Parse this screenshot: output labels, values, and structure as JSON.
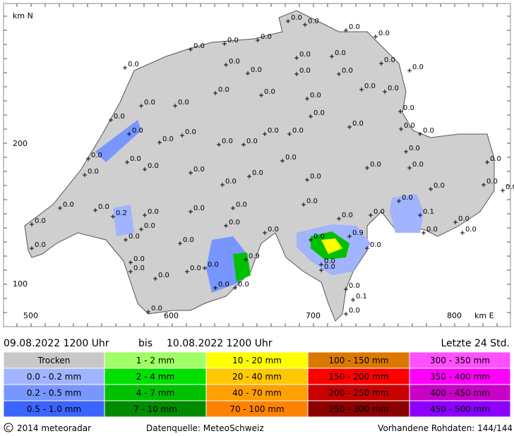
{
  "map": {
    "y_axis_label": "km N",
    "x_axis_label": "km E",
    "y_labels": [
      "200",
      "100"
    ],
    "x_labels": [
      "500",
      "600",
      "700",
      "800"
    ],
    "stations": [
      "0.0",
      "0.0",
      "0.0",
      "0.0",
      "0.0",
      "0.0",
      "0.0",
      "0.0",
      "0.0",
      "0.0",
      "0.0",
      "0.0",
      "0.0",
      "0.0",
      "0.0",
      "0.0",
      "0.0",
      "0.0",
      "0.0",
      "0.0",
      "0.0",
      "0.0",
      "0.0",
      "0.0",
      "0.0",
      "0.0",
      "0.0",
      "0.0",
      "0.0",
      "0.0",
      "0.0",
      "0.0",
      "0.0",
      "0.0",
      "0.0",
      "0.0",
      "0.0",
      "0.0",
      "0.0",
      "0.0",
      "0.0",
      "0.0",
      "0.0",
      "0.0",
      "0.0",
      "0.0",
      "0.0",
      "0.0",
      "0.0",
      "0.0",
      "0.0",
      "0.2",
      "0.0",
      "0.0",
      "0.0",
      "0.0",
      "0.0",
      "0.0",
      "0.0",
      "0.0",
      "0.0",
      "0.0",
      "0.0",
      "0.0",
      "0.0",
      "0.0",
      "0.0",
      "0.0",
      "0.0",
      "0.0",
      "0.9",
      "0.0",
      "0.1",
      "0.0",
      "0.0",
      "0.0",
      "0.0",
      "0.0",
      "0.0",
      "0.0",
      "0.0",
      "0.0",
      "0.0",
      "0.9",
      "0.0",
      "0.0",
      "0.0",
      "0.1",
      "0.0",
      "0.0"
    ]
  },
  "header": {
    "from": "09.08.2022 1200 Uhr",
    "sep": "bis",
    "to": "10.08.2022 1200 Uhr",
    "period": "Letzte 24 Std."
  },
  "legend": {
    "rows": [
      [
        {
          "label": "Trocken",
          "color": "#c8c8c8"
        },
        {
          "label": "1 - 2 mm",
          "color": "#a0ff64"
        },
        {
          "label": "10 - 20 mm",
          "color": "#ffff00"
        },
        {
          "label": "100 - 150 mm",
          "color": "#dc7800"
        },
        {
          "label": "300 - 350 mm",
          "color": "#ff50ff"
        }
      ],
      [
        {
          "label": "0.0 - 0.2 mm",
          "color": "#a0b4ff"
        },
        {
          "label": "2 - 4 mm",
          "color": "#00e000"
        },
        {
          "label": "20 - 40 mm",
          "color": "#ffc800"
        },
        {
          "label": "150 - 200 mm",
          "color": "#ff0000"
        },
        {
          "label": "350 - 400 mm",
          "color": "#ff00ff"
        }
      ],
      [
        {
          "label": "0.2 - 0.5 mm",
          "color": "#7896ff"
        },
        {
          "label": "4 - 7 mm",
          "color": "#00c000"
        },
        {
          "label": "40 - 70 mm",
          "color": "#ffa000"
        },
        {
          "label": "200 - 250 mm",
          "color": "#c80000"
        },
        {
          "label": "400 - 450 mm",
          "color": "#c800c8"
        }
      ],
      [
        {
          "label": "0.5 - 1.0 mm",
          "color": "#3c64ff"
        },
        {
          "label": "7 - 10 mm",
          "color": "#008c00"
        },
        {
          "label": "70 - 100 mm",
          "color": "#ff8200"
        },
        {
          "label": "250 - 300 mm",
          "color": "#8c0000"
        },
        {
          "label": "450 - 500 mm",
          "color": "#8c00ff"
        }
      ]
    ]
  },
  "footer": {
    "copyright": "2014 meteoradar",
    "source": "Datenquelle: MeteoSchweiz",
    "raw": "Vorhandene Rohdaten: 144/144"
  }
}
